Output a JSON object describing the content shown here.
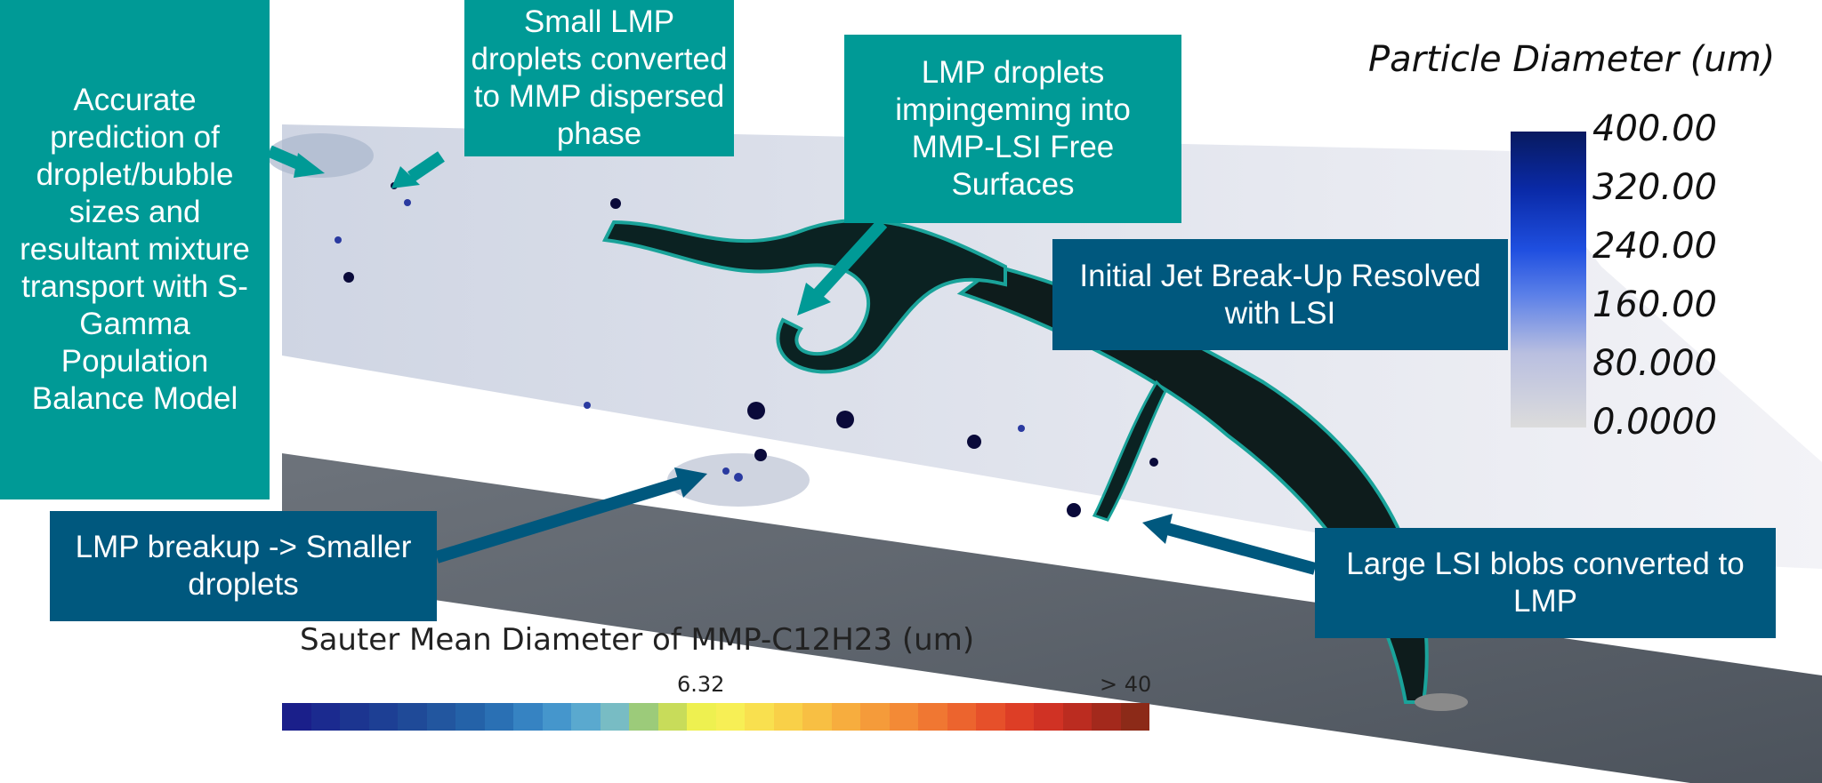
{
  "annotations": {
    "population_balance": "Accurate prediction of droplet/bubble sizes and resultant mixture transport with S-Gamma Population Balance Model",
    "small_lmp": "Small LMP droplets converted to MMP dispersed phase",
    "impinging": "LMP droplets impingeming into MMP-LSI Free Surfaces",
    "initial_jet": "Initial Jet Break-Up Resolved with LSI",
    "breakup": "LMP breakup -> Smaller droplets",
    "large_lsi": "Large LSI blobs converted to LMP"
  },
  "particle_legend": {
    "title": "Particle Diameter (um)",
    "ticks": [
      "400.00",
      "320.00",
      "240.00",
      "160.00",
      "80.000",
      "0.0000"
    ],
    "colors": {
      "min": "#dcdcdc",
      "max": "#081a60"
    }
  },
  "sauter_legend": {
    "title": "Sauter Mean Diameter of MMP-C12H23 (um)",
    "mid_label": "6.32",
    "max_label": "> 40",
    "colors": [
      "#1a1f8a",
      "#1b2a8f",
      "#1c3590",
      "#1d3f94",
      "#1f4a98",
      "#22569f",
      "#2462a8",
      "#2a70b4",
      "#3683c2",
      "#4596cc",
      "#5aa9cf",
      "#78bcc4",
      "#9ccb7a",
      "#c8dc5a",
      "#eef050",
      "#f7ef55",
      "#f9e04f",
      "#f9d048",
      "#f8bf43",
      "#f7ad3e",
      "#f59b3a",
      "#f38a36",
      "#f07732",
      "#ec642e",
      "#e6502a",
      "#dd3e26",
      "#d03224",
      "#bb2c20",
      "#a3291c",
      "#8c2a18"
    ]
  },
  "accent_colors": {
    "teal": "#009a96",
    "navy": "#00587e"
  }
}
